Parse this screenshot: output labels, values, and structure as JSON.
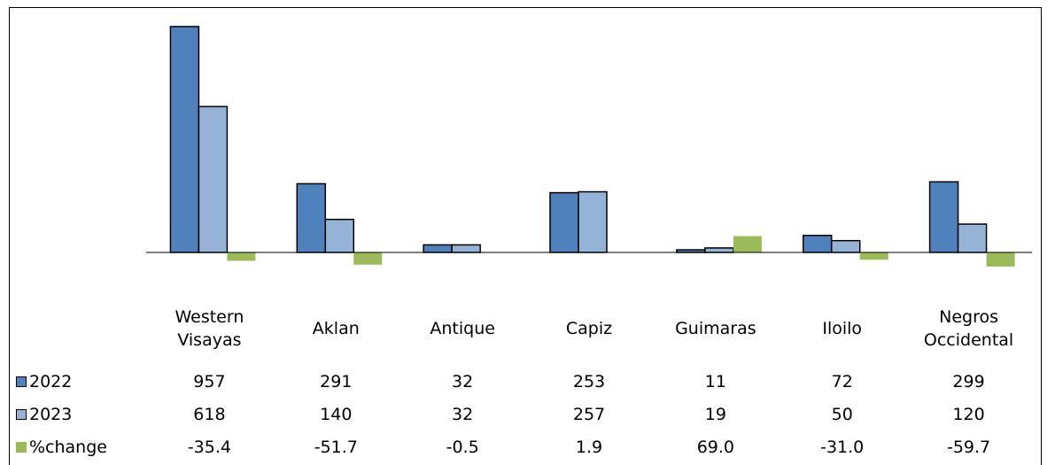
{
  "chart_data": {
    "type": "bar",
    "categories": [
      "Western Visayas",
      "Aklan",
      "Antique",
      "Capiz",
      "Guimaras",
      "Iloilo",
      "Negros Occidental"
    ],
    "series": [
      {
        "name": "2022",
        "color": "#4f81bd",
        "values": [
          957,
          291,
          32,
          253,
          11,
          72,
          299
        ]
      },
      {
        "name": "2023",
        "color": "#95b3d7",
        "values": [
          618,
          140,
          32,
          257,
          19,
          50,
          120
        ]
      },
      {
        "name": "%change",
        "color": "#9bbb59",
        "values": [
          -35.4,
          -51.7,
          -0.5,
          1.9,
          69.0,
          -31.0,
          -59.7
        ],
        "value_labels": [
          "-35.4",
          "-51.7",
          "-0.5",
          "1.9",
          "69.0",
          "-31.0",
          "-59.7"
        ]
      }
    ]
  }
}
